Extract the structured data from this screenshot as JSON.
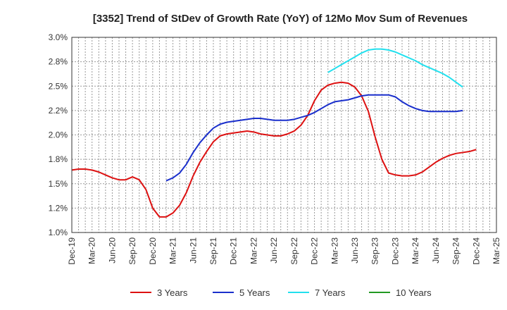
{
  "chart_data": {
    "type": "line",
    "title": "[3352]  Trend of StDev of Growth Rate (YoY) of 12Mo Mov Sum of Revenues",
    "xlabel": "",
    "ylabel": "",
    "ylim": [
      1.0,
      3.0
    ],
    "y_ticks": [
      1.0,
      1.25,
      1.5,
      1.75,
      2.0,
      2.25,
      2.5,
      2.75,
      3.0
    ],
    "y_tick_labels": [
      "1.0%",
      "1.2%",
      "1.5%",
      "1.8%",
      "2.0%",
      "2.2%",
      "2.5%",
      "2.8%",
      "3.0%"
    ],
    "x_tick_labels": [
      "Dec-19",
      "Mar-20",
      "Jun-20",
      "Sep-20",
      "Dec-20",
      "Mar-21",
      "Jun-21",
      "Sep-21",
      "Dec-21",
      "Mar-22",
      "Jun-22",
      "Sep-22",
      "Dec-22",
      "Mar-23",
      "Jun-23",
      "Sep-23",
      "Dec-23",
      "Mar-24",
      "Jun-24",
      "Sep-24",
      "Dec-24",
      "Mar-25"
    ],
    "grid": true,
    "legend_position": "bottom",
    "series": [
      {
        "name": "3 Years",
        "color": "#dd1111",
        "start_index": 0,
        "values": [
          1.64,
          1.65,
          1.65,
          1.64,
          1.62,
          1.59,
          1.56,
          1.54,
          1.54,
          1.57,
          1.54,
          1.44,
          1.25,
          1.16,
          1.16,
          1.2,
          1.28,
          1.41,
          1.58,
          1.72,
          1.83,
          1.93,
          1.99,
          2.01,
          2.02,
          2.03,
          2.04,
          2.03,
          2.01,
          2.0,
          1.99,
          1.99,
          2.01,
          2.04,
          2.1,
          2.2,
          2.35,
          2.46,
          2.51,
          2.53,
          2.54,
          2.53,
          2.49,
          2.4,
          2.24,
          1.98,
          1.75,
          1.61,
          1.59,
          1.58,
          1.58,
          1.59,
          1.62,
          1.67,
          1.72,
          1.76,
          1.79,
          1.81,
          1.82,
          1.83,
          1.85
        ]
      },
      {
        "name": "5 Years",
        "color": "#1a2fcc",
        "start_index": 14,
        "values": [
          1.53,
          1.56,
          1.61,
          1.7,
          1.82,
          1.92,
          2.0,
          2.07,
          2.11,
          2.13,
          2.14,
          2.15,
          2.16,
          2.17,
          2.17,
          2.16,
          2.15,
          2.15,
          2.15,
          2.16,
          2.18,
          2.2,
          2.23,
          2.27,
          2.31,
          2.34,
          2.35,
          2.36,
          2.38,
          2.4,
          2.41,
          2.41,
          2.41,
          2.41,
          2.39,
          2.34,
          2.3,
          2.27,
          2.25,
          2.24,
          2.24,
          2.24,
          2.24,
          2.24,
          2.25
        ]
      },
      {
        "name": "7 Years",
        "color": "#22e0ee",
        "start_index": 38,
        "values": [
          2.64,
          2.68,
          2.72,
          2.76,
          2.8,
          2.84,
          2.87,
          2.88,
          2.88,
          2.87,
          2.85,
          2.82,
          2.79,
          2.76,
          2.72,
          2.69,
          2.66,
          2.63,
          2.59,
          2.54,
          2.49
        ]
      },
      {
        "name": "10 Years",
        "color": "#229922",
        "start_index": 0,
        "values": []
      }
    ]
  }
}
